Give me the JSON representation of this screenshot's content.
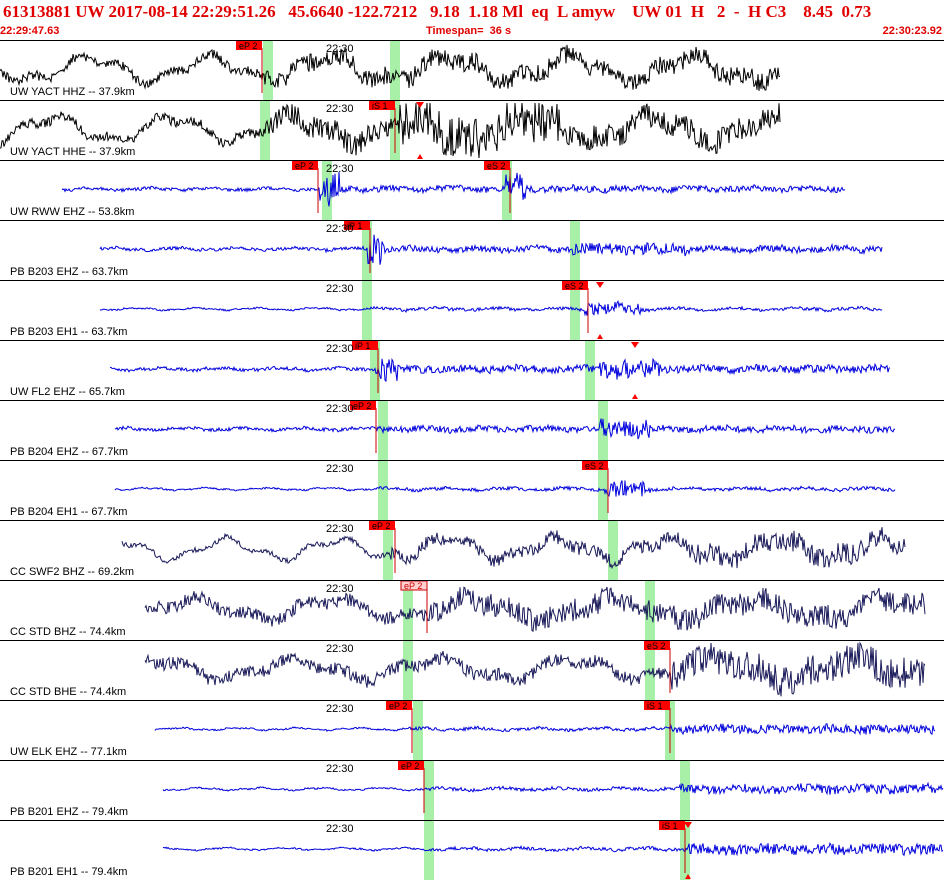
{
  "header": {
    "title": "61313881 UW 2017-08-14 22:29:51.26   45.6640 -122.7212   9.18  1.18 Ml  eq  L amyw    UW 01  H   2  -  H C3    8.45  0.73",
    "start_time": "22:29:47.63",
    "timespan": "Timespan=  36 s",
    "end_time": "22:30:23.92"
  },
  "colors": {
    "header": "#e00000",
    "pick_box": "#ff0000",
    "window": "#a8f0a8",
    "blue": "#0000dd",
    "black": "#000000",
    "navy": "#1a1a5a"
  },
  "traces": [
    {
      "label": "UW YACT HHZ -- 37.9km",
      "time_label": "22:30",
      "color": "black",
      "x0": 0,
      "x1": 780,
      "amp": 11,
      "noise": 6,
      "period": 120,
      "shake": [
        [
          265,
          780,
          1.0
        ]
      ],
      "windows": [
        263,
        390
      ],
      "picks": [
        {
          "label": "eP 2",
          "x": 262,
          "lbl_side": "left"
        }
      ]
    },
    {
      "label": "UW YACT HHE -- 37.9km",
      "time_label": "22:30",
      "color": "black",
      "x0": 0,
      "x1": 780,
      "amp": 11,
      "noise": 6,
      "period": 120,
      "shake": [
        [
          265,
          780,
          1.2
        ],
        [
          395,
          560,
          2.2
        ]
      ],
      "windows": [
        260,
        390
      ],
      "picks": [
        {
          "label": "iS 1",
          "x": 395,
          "lbl_side": "left",
          "tri": 420
        }
      ]
    },
    {
      "label": "UW RWW EHZ -- 53.8km",
      "time_label": "22:30",
      "color": "blue",
      "x0": 62,
      "x1": 845,
      "amp": 1,
      "noise": 2,
      "period": 60,
      "shake": [
        [
          320,
          845,
          1.0
        ],
        [
          320,
          340,
          6
        ],
        [
          505,
          525,
          5
        ]
      ],
      "windows": [
        322,
        502
      ],
      "picks": [
        {
          "label": "eP 2",
          "x": 318,
          "lbl_side": "left"
        },
        {
          "label": "eS 2",
          "x": 510,
          "lbl_side": "left"
        }
      ]
    },
    {
      "label": "PB B203 EHZ -- 63.7km",
      "time_label": "22:30",
      "color": "blue",
      "x0": 100,
      "x1": 882,
      "amp": 1,
      "noise": 2,
      "period": 60,
      "shake": [
        [
          368,
          882,
          1.0
        ],
        [
          368,
          385,
          6
        ],
        [
          570,
          690,
          1.8
        ]
      ],
      "windows": [
        362,
        570
      ],
      "picks": [
        {
          "label": "iP 1",
          "x": 370,
          "lbl_side": "left"
        }
      ]
    },
    {
      "label": "PB B203 EH1 -- 63.7km",
      "time_label": "22:30",
      "color": "blue",
      "x0": 100,
      "x1": 882,
      "amp": 1,
      "noise": 1,
      "period": 60,
      "shake": [
        [
          368,
          882,
          0.6
        ],
        [
          585,
          640,
          4
        ]
      ],
      "windows": [
        362,
        570
      ],
      "picks": [
        {
          "label": "eS 2",
          "x": 588,
          "lbl_side": "left",
          "tri": 600
        }
      ]
    },
    {
      "label": "UW FL2 EHZ -- 65.7km",
      "time_label": "22:30",
      "color": "blue",
      "x0": 110,
      "x1": 890,
      "amp": 1,
      "noise": 2,
      "period": 60,
      "shake": [
        [
          375,
          890,
          1.2
        ],
        [
          380,
          400,
          4
        ],
        [
          600,
          660,
          3
        ]
      ],
      "windows": [
        370,
        585
      ],
      "picks": [
        {
          "label": "iP 1",
          "x": 378,
          "lbl_side": "left",
          "tri": 635
        }
      ]
    },
    {
      "label": "PB B204 EHZ -- 67.7km",
      "time_label": "22:30",
      "color": "blue",
      "x0": 115,
      "x1": 895,
      "amp": 1,
      "noise": 2,
      "period": 60,
      "shake": [
        [
          378,
          895,
          0.9
        ],
        [
          600,
          650,
          3
        ]
      ],
      "windows": [
        378,
        598
      ],
      "picks": [
        {
          "label": "eP 2",
          "x": 376,
          "lbl_side": "left"
        }
      ]
    },
    {
      "label": "PB B204 EH1 -- 67.7km",
      "time_label": "22:30",
      "color": "blue",
      "x0": 115,
      "x1": 895,
      "amp": 1,
      "noise": 1,
      "period": 60,
      "shake": [
        [
          378,
          895,
          0.6
        ],
        [
          605,
          650,
          5
        ]
      ],
      "windows": [
        378,
        598
      ],
      "picks": [
        {
          "label": "eS 2",
          "x": 608,
          "lbl_side": "left"
        }
      ]
    },
    {
      "label": "CC SWF2 BHZ -- 69.2km",
      "time_label": "22:30",
      "color": "navy",
      "x0": 122,
      "x1": 905,
      "amp": 9,
      "noise": 3,
      "period": 110,
      "shake": [
        [
          390,
          905,
          1.4
        ],
        [
          690,
          905,
          2.2
        ]
      ],
      "windows": [
        383,
        608
      ],
      "picks": [
        {
          "label": "eP 2",
          "x": 395,
          "lbl_side": "left"
        }
      ]
    },
    {
      "label": "CC STD BHZ -- 74.4km",
      "time_label": "22:30",
      "color": "navy",
      "x0": 145,
      "x1": 925,
      "amp": 9,
      "noise": 4,
      "period": 140,
      "shake": [
        [
          145,
          925,
          1.0
        ],
        [
          430,
          925,
          1.8
        ]
      ],
      "windows": [
        403,
        645
      ],
      "picks": [
        {
          "label": "eP 2",
          "x": 427,
          "lbl_side": "left",
          "soft": true
        }
      ]
    },
    {
      "label": "CC STD BHE -- 74.4km",
      "time_label": "22:30",
      "color": "navy",
      "x0": 145,
      "x1": 925,
      "amp": 9,
      "noise": 4,
      "period": 140,
      "shake": [
        [
          145,
          925,
          1.0
        ],
        [
          670,
          925,
          2.4
        ]
      ],
      "windows": [
        403,
        645
      ],
      "picks": [
        {
          "label": "eS 2",
          "x": 670,
          "lbl_side": "left"
        }
      ]
    },
    {
      "label": "UW ELK EHZ -- 77.1km",
      "time_label": "22:30",
      "color": "blue",
      "x0": 155,
      "x1": 935,
      "amp": 1,
      "noise": 1,
      "period": 60,
      "shake": [
        [
          410,
          935,
          1.0
        ],
        [
          670,
          935,
          2.8
        ]
      ],
      "windows": [
        413,
        665
      ],
      "picks": [
        {
          "label": "eP 2",
          "x": 412,
          "lbl_side": "left"
        },
        {
          "label": "iS 1",
          "x": 670,
          "lbl_side": "left"
        }
      ]
    },
    {
      "label": "PB B201 EHZ -- 79.4km",
      "time_label": "22:30",
      "color": "blue",
      "x0": 163,
      "x1": 943,
      "amp": 1,
      "noise": 1,
      "period": 60,
      "shake": [
        [
          425,
          943,
          0.8
        ],
        [
          680,
          943,
          3
        ]
      ],
      "windows": [
        424,
        680
      ],
      "picks": [
        {
          "label": "eP 2",
          "x": 424,
          "lbl_side": "left"
        }
      ]
    },
    {
      "label": "PB B201 EH1 -- 79.4km",
      "time_label": "22:30",
      "color": "blue",
      "x0": 163,
      "x1": 943,
      "amp": 1,
      "noise": 1,
      "period": 60,
      "shake": [
        [
          425,
          943,
          0.6
        ],
        [
          685,
          943,
          3.5
        ]
      ],
      "windows": [
        424,
        680
      ],
      "picks": [
        {
          "label": "iS 1",
          "x": 685,
          "lbl_side": "left",
          "tri": 688
        }
      ]
    }
  ]
}
